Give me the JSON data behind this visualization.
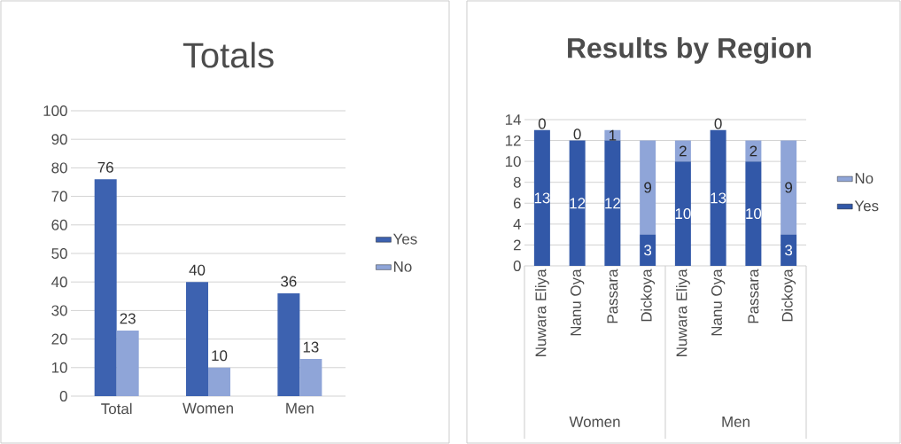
{
  "chart_data": [
    {
      "type": "bar",
      "title": "Totals",
      "categories": [
        "Total",
        "Women",
        "Men"
      ],
      "series": [
        {
          "name": "Yes",
          "color": "#3d62b0",
          "values": [
            76,
            40,
            36
          ]
        },
        {
          "name": "No",
          "color": "#8fa5d8",
          "values": [
            23,
            10,
            13
          ]
        }
      ],
      "ylim": [
        0,
        100
      ],
      "yticks": [
        0,
        10,
        20,
        30,
        40,
        50,
        60,
        70,
        80,
        90,
        100
      ],
      "grid": "y",
      "legend": "right",
      "data_labels": true
    },
    {
      "type": "bar",
      "title": "Results by Region",
      "stacked": true,
      "categories": [
        "Nuwara Eliya",
        "Nanu Oya",
        "Passara",
        "Dickoya",
        "Nuwara Eliya",
        "Nanu Oya",
        "Passara",
        "Dickoya"
      ],
      "series": [
        {
          "name": "Yes",
          "color": "#3258a8",
          "values": [
            13,
            12,
            12,
            3,
            10,
            13,
            10,
            3
          ]
        },
        {
          "name": "No",
          "color": "#8fa5d8",
          "values": [
            0,
            0,
            1,
            9,
            2,
            0,
            2,
            9
          ]
        }
      ],
      "ylim": [
        0,
        14
      ],
      "yticks": [
        0,
        2,
        4,
        6,
        8,
        10,
        12,
        14
      ],
      "grid": "y",
      "legend": "right",
      "data_labels": true,
      "annotations": [
        "Women",
        "Men"
      ]
    }
  ]
}
